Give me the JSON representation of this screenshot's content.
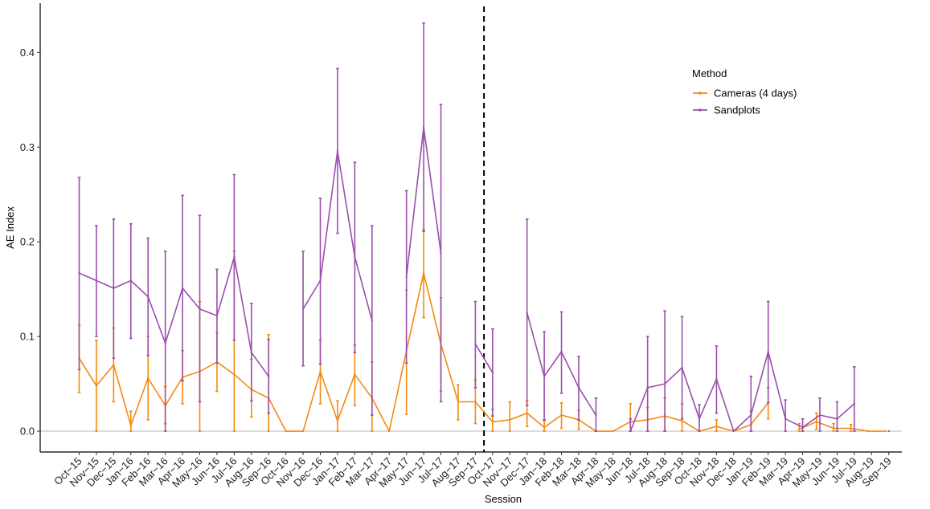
{
  "chart_data": {
    "type": "line",
    "xlabel": "Session",
    "ylabel": "AE Index",
    "ylim": [
      -0.022,
      0.452
    ],
    "yticks": [
      0.0,
      0.1,
      0.2,
      0.3,
      0.4
    ],
    "ytick_labels": [
      "0.0",
      "0.1",
      "0.2",
      "0.3",
      "0.4"
    ],
    "hline_y": 0,
    "vline_after_category": "Sep−17",
    "legend": {
      "title": "Method",
      "position": "top-right"
    },
    "grid": false,
    "categories": [
      "Oct−15",
      "Nov−15",
      "Dec−15",
      "Jan−16",
      "Feb−16",
      "Mar−16",
      "Apr−16",
      "May−16",
      "Jun−16",
      "Jul−16",
      "Aug−16",
      "Sep−16",
      "Oct−16",
      "Nov−16",
      "Dec−16",
      "Jan−17",
      "Feb−17",
      "Mar−17",
      "Apr−17",
      "May−17",
      "Jun−17",
      "Jul−17",
      "Aug−17",
      "Sep−17",
      "Oct−17",
      "Nov−17",
      "Dec−17",
      "Jan−18",
      "Feb−18",
      "Mar−18",
      "Apr−18",
      "May−18",
      "Jun−18",
      "Jul−18",
      "Aug−18",
      "Sep−18",
      "Oct−18",
      "Nov−18",
      "Dec−18",
      "Jan−19",
      "Feb−19",
      "Mar−19",
      "Apr−19",
      "May−19",
      "Jun−19",
      "Jul−19",
      "Aug−19",
      "Sep−19"
    ],
    "series": [
      {
        "name": "Cameras (4 days)",
        "color": "#f28a12",
        "points": [
          {
            "x": 0.0,
            "y": 0.077,
            "lo": 0.041,
            "hi": 0.112
          },
          {
            "x": 1.0,
            "y": 0.048,
            "lo": 0.0,
            "hi": 0.096
          },
          {
            "x": 2.0,
            "y": 0.07,
            "lo": 0.031,
            "hi": 0.109
          },
          {
            "x": 3.0,
            "y": 0.006,
            "lo": 0.0,
            "hi": 0.021
          },
          {
            "x": 4.0,
            "y": 0.056,
            "lo": 0.012,
            "hi": 0.1
          },
          {
            "x": 5.0,
            "y": 0.027,
            "lo": 0.008,
            "hi": 0.047
          },
          {
            "x": 6.0,
            "y": 0.057,
            "lo": 0.029,
            "hi": 0.085
          },
          {
            "x": 7.0,
            "y": 0.063,
            "lo": 0.0,
            "hi": 0.137
          },
          {
            "x": 8.0,
            "y": 0.073,
            "lo": 0.042,
            "hi": 0.104
          },
          {
            "x": 9.0,
            "y": 0.06,
            "lo": 0.0,
            "hi": 0.19
          },
          {
            "x": 10.0,
            "y": 0.044,
            "lo": 0.015,
            "hi": 0.076
          },
          {
            "x": 11.0,
            "y": 0.035,
            "lo": 0.0,
            "hi": 0.102
          },
          {
            "x": 12.0,
            "y": 0.0,
            "lo": 0.0,
            "hi": 0.0
          },
          {
            "x": 13.0,
            "y": 0.0,
            "lo": 0.0,
            "hi": 0.0
          },
          {
            "x": 14.0,
            "y": 0.063,
            "lo": 0.029,
            "hi": 0.096
          },
          {
            "x": 15.0,
            "y": 0.011,
            "lo": 0.0,
            "hi": 0.032
          },
          {
            "x": 16.0,
            "y": 0.06,
            "lo": 0.027,
            "hi": 0.091
          },
          {
            "x": 17.0,
            "y": 0.035,
            "lo": 0.0,
            "hi": 0.073
          },
          {
            "x": 18.0,
            "y": 0.0,
            "lo": 0.0,
            "hi": 0.0
          },
          {
            "x": 19.0,
            "y": 0.085,
            "lo": 0.018,
            "hi": 0.149
          },
          {
            "x": 20.0,
            "y": 0.167,
            "lo": 0.12,
            "hi": 0.213
          },
          {
            "x": 21.0,
            "y": 0.092,
            "lo": 0.042,
            "hi": 0.141
          },
          {
            "x": 22.0,
            "y": 0.031,
            "lo": 0.012,
            "hi": 0.049
          },
          {
            "x": 23.0,
            "y": 0.031,
            "lo": 0.008,
            "hi": 0.054
          },
          {
            "x": 24.0,
            "y": 0.01,
            "lo": 0.0,
            "hi": 0.023
          },
          {
            "x": 25.0,
            "y": 0.012,
            "lo": 0.0,
            "hi": 0.031
          },
          {
            "x": 26.0,
            "y": 0.019,
            "lo": 0.005,
            "hi": 0.032
          },
          {
            "x": 27.0,
            "y": 0.004,
            "lo": 0.0,
            "hi": 0.011
          },
          {
            "x": 28.0,
            "y": 0.017,
            "lo": 0.003,
            "hi": 0.03
          },
          {
            "x": 29.0,
            "y": 0.012,
            "lo": 0.002,
            "hi": 0.022
          },
          {
            "x": 30.0,
            "y": 0.0,
            "lo": 0.0,
            "hi": 0.0
          },
          {
            "x": 31.0,
            "y": 0.0,
            "lo": 0.0,
            "hi": 0.0
          },
          {
            "x": 32.0,
            "y": 0.01,
            "lo": 0.0,
            "hi": 0.029
          },
          {
            "x": 33.0,
            "y": 0.012,
            "lo": 0.0,
            "hi": 0.025
          },
          {
            "x": 34.0,
            "y": 0.016,
            "lo": 0.0,
            "hi": 0.035
          },
          {
            "x": 35.0,
            "y": 0.011,
            "lo": 0.0,
            "hi": 0.029
          },
          {
            "x": 36.0,
            "y": 0.0,
            "lo": 0.0,
            "hi": 0.0
          },
          {
            "x": 37.0,
            "y": 0.005,
            "lo": 0.0,
            "hi": 0.012
          },
          {
            "x": 38.0,
            "y": 0.0,
            "lo": 0.0,
            "hi": 0.0
          },
          {
            "x": 39.0,
            "y": 0.007,
            "lo": 0.0,
            "hi": 0.021
          },
          {
            "x": 40.0,
            "y": 0.03,
            "lo": 0.013,
            "hi": 0.046
          },
          {
            "x": 41.8,
            "y": 0.002,
            "lo": 0.0,
            "hi": 0.008
          },
          {
            "x": 42.8,
            "y": 0.01,
            "lo": 0.002,
            "hi": 0.019
          },
          {
            "x": 43.8,
            "y": 0.003,
            "lo": 0.0,
            "hi": 0.008
          },
          {
            "x": 44.8,
            "y": 0.003,
            "lo": 0.0,
            "hi": 0.007
          },
          {
            "x": 45.8,
            "y": 0.0,
            "lo": 0.0,
            "hi": 0.0
          },
          {
            "x": 46.8,
            "y": 0.0,
            "lo": 0.0,
            "hi": 0.0
          }
        ]
      },
      {
        "name": "Sandplots",
        "color": "#9b4fad",
        "points": [
          {
            "x": 0.0,
            "y": 0.167,
            "lo": 0.065,
            "hi": 0.268
          },
          {
            "x": 1.0,
            "y": 0.159,
            "lo": 0.1,
            "hi": 0.217
          },
          {
            "x": 2.0,
            "y": 0.151,
            "lo": 0.077,
            "hi": 0.224
          },
          {
            "x": 3.0,
            "y": 0.159,
            "lo": 0.098,
            "hi": 0.219
          },
          {
            "x": 4.0,
            "y": 0.142,
            "lo": 0.08,
            "hi": 0.204
          },
          {
            "x": 5.0,
            "y": 0.093,
            "lo": 0.0,
            "hi": 0.19
          },
          {
            "x": 6.0,
            "y": 0.151,
            "lo": 0.053,
            "hi": 0.249
          },
          {
            "x": 7.0,
            "y": 0.129,
            "lo": 0.031,
            "hi": 0.228
          },
          {
            "x": 8.0,
            "y": 0.122,
            "lo": 0.072,
            "hi": 0.171
          },
          {
            "x": 9.0,
            "y": 0.184,
            "lo": 0.096,
            "hi": 0.271
          },
          {
            "x": 10.0,
            "y": 0.083,
            "lo": 0.032,
            "hi": 0.135
          },
          {
            "x": 11.0,
            "y": 0.058,
            "lo": 0.019,
            "hi": 0.097
          },
          {
            "x": 13.0,
            "y": 0.129,
            "lo": 0.069,
            "hi": 0.19
          },
          {
            "x": 14.0,
            "y": 0.159,
            "lo": 0.071,
            "hi": 0.246
          },
          {
            "x": 15.0,
            "y": 0.296,
            "lo": 0.209,
            "hi": 0.383
          },
          {
            "x": 16.0,
            "y": 0.184,
            "lo": 0.083,
            "hi": 0.284
          },
          {
            "x": 17.0,
            "y": 0.117,
            "lo": 0.017,
            "hi": 0.217
          },
          {
            "x": 19.0,
            "y": 0.163,
            "lo": 0.072,
            "hi": 0.254
          },
          {
            "x": 20.0,
            "y": 0.321,
            "lo": 0.211,
            "hi": 0.431
          },
          {
            "x": 21.0,
            "y": 0.188,
            "lo": 0.031,
            "hi": 0.345
          },
          {
            "x": 23.0,
            "y": 0.092,
            "lo": 0.046,
            "hi": 0.137
          },
          {
            "x": 24.0,
            "y": 0.062,
            "lo": 0.016,
            "hi": 0.108
          },
          {
            "x": 26.0,
            "y": 0.125,
            "lo": 0.027,
            "hi": 0.224
          },
          {
            "x": 27.0,
            "y": 0.058,
            "lo": 0.012,
            "hi": 0.105
          },
          {
            "x": 28.0,
            "y": 0.084,
            "lo": 0.04,
            "hi": 0.126
          },
          {
            "x": 29.0,
            "y": 0.046,
            "lo": 0.012,
            "hi": 0.079
          },
          {
            "x": 30.0,
            "y": 0.017,
            "lo": 0.0,
            "hi": 0.035
          },
          {
            "x": 32.0,
            "y": 0.0,
            "lo": 0.0,
            "hi": 0.013
          },
          {
            "x": 33.0,
            "y": 0.046,
            "lo": 0.0,
            "hi": 0.1
          },
          {
            "x": 34.0,
            "y": 0.05,
            "lo": 0.0,
            "hi": 0.127
          },
          {
            "x": 35.0,
            "y": 0.067,
            "lo": 0.013,
            "hi": 0.121
          },
          {
            "x": 36.0,
            "y": 0.013,
            "lo": 0.0,
            "hi": 0.028
          },
          {
            "x": 37.0,
            "y": 0.055,
            "lo": 0.019,
            "hi": 0.09
          },
          {
            "x": 38.0,
            "y": 0.0,
            "lo": 0.0,
            "hi": 0.0
          },
          {
            "x": 39.0,
            "y": 0.017,
            "lo": 0.0,
            "hi": 0.058
          },
          {
            "x": 40.0,
            "y": 0.084,
            "lo": 0.03,
            "hi": 0.137
          },
          {
            "x": 41.0,
            "y": 0.013,
            "lo": 0.0,
            "hi": 0.033
          },
          {
            "x": 42.0,
            "y": 0.004,
            "lo": 0.0,
            "hi": 0.013
          },
          {
            "x": 43.0,
            "y": 0.017,
            "lo": 0.0,
            "hi": 0.035
          },
          {
            "x": 44.0,
            "y": 0.013,
            "lo": 0.0,
            "hi": 0.031
          },
          {
            "x": 45.0,
            "y": 0.029,
            "lo": 0.0,
            "hi": 0.068
          },
          {
            "x": 47.0,
            "y": 0.0,
            "lo": 0.0,
            "hi": 0.0
          }
        ]
      }
    ]
  }
}
